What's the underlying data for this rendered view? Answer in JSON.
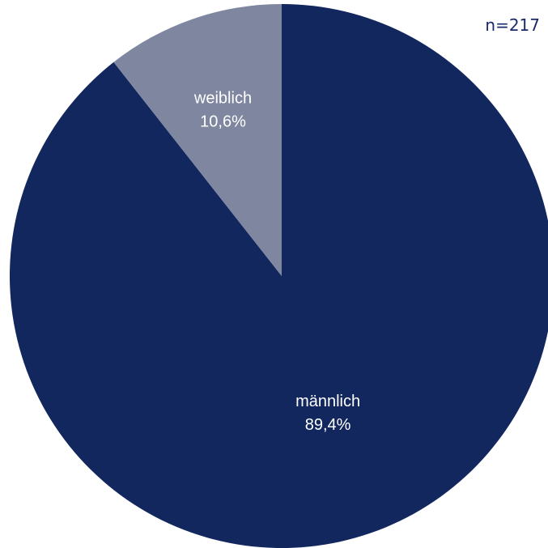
{
  "sample_size": "n=217",
  "chart_data": {
    "type": "pie",
    "title": "",
    "start_angle_deg": 0,
    "direction": "clockwise",
    "slices": [
      {
        "label": "männlich",
        "value": 89.4,
        "display": "89,4%",
        "color": "#13275f"
      },
      {
        "label": "weiblich",
        "value": 10.6,
        "display": "10,6%",
        "color": "#7f86a0"
      }
    ],
    "label_color": "#ffffff",
    "annotation_color": "#1a2a6c"
  }
}
